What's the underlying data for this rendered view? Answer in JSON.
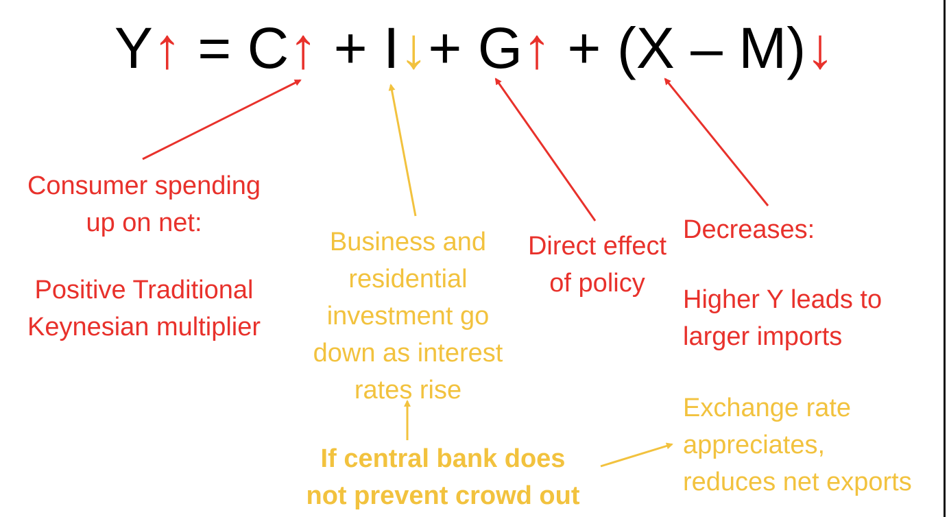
{
  "equation": {
    "y": "Y",
    "y_arrow": "↑",
    "eq": " = ",
    "c": "C",
    "c_arrow": "↑",
    "plus1": " + ",
    "i": "I",
    "i_arrow": "↓",
    "plus2": "+ ",
    "g": "G",
    "g_arrow": "↑",
    "plus3": " + ",
    "nx": "(X – M)",
    "nx_arrow": "↓"
  },
  "labels": {
    "consumer_line1": "Consumer spending",
    "consumer_line2": "up on net:",
    "consumer_line3": "Positive Traditional",
    "consumer_line4": "Keynesian multiplier",
    "investment_line1": "Business and",
    "investment_line2": "residential",
    "investment_line3": "investment go",
    "investment_line4": "down as interest",
    "investment_line5": "rates rise",
    "gov_line1": "Direct effect",
    "gov_line2": "of policy",
    "nx_line1": "Decreases:",
    "nx_line2": "Higher Y leads to",
    "nx_line3": "larger imports",
    "exchange_line1": "Exchange rate",
    "exchange_line2": "appreciates,",
    "exchange_line3": "reduces net exports",
    "central_line1": "If central bank does",
    "central_line2": "not prevent crowd out"
  },
  "colors": {
    "red": "#e8312b",
    "yellow": "#f2c23e",
    "black": "#000000"
  }
}
